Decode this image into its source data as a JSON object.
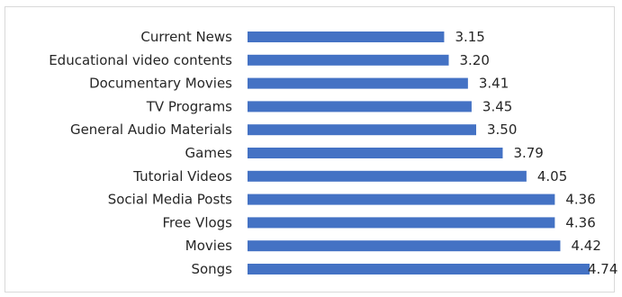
{
  "chart_data": {
    "type": "bar",
    "orientation": "horizontal",
    "categories": [
      "Current News",
      "Educational video contents",
      "Documentary Movies",
      "TV Programs",
      "General Audio Materials",
      "Games",
      "Tutorial Videos",
      "Social Media Posts",
      "Free Vlogs",
      "Movies",
      "Songs"
    ],
    "values": [
      3.15,
      3.2,
      3.41,
      3.45,
      3.5,
      3.79,
      4.05,
      4.36,
      4.36,
      4.42,
      4.74
    ],
    "value_labels": [
      "3.15",
      "3.20",
      "3.41",
      "3.45",
      "3.50",
      "3.79",
      "4.05",
      "4.36",
      "4.36",
      "4.42",
      "4.74"
    ],
    "xlim": [
      1,
      4.74
    ],
    "grid": false,
    "legend": "none",
    "bar_color": "#4472c4"
  }
}
